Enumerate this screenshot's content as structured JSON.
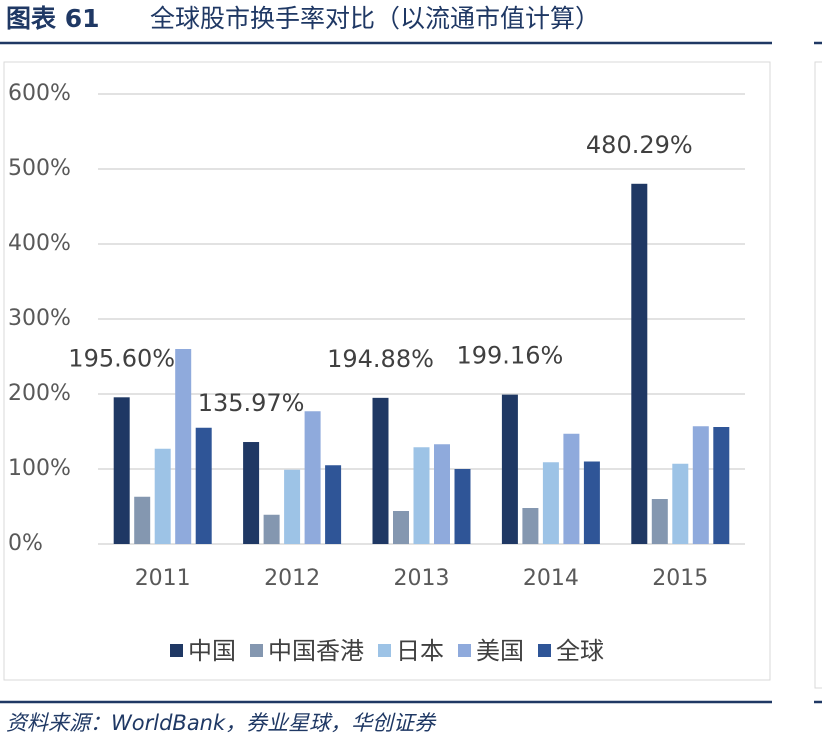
{
  "header": {
    "figure_label": "图表 61",
    "title": "全球股市换手率对比（以流通市值计算）"
  },
  "chart_data": {
    "type": "bar",
    "categories": [
      "2011",
      "2012",
      "2013",
      "2014",
      "2015"
    ],
    "series": [
      {
        "name": "中国",
        "color": "#1f3864",
        "values": [
          195.6,
          135.97,
          194.88,
          199.16,
          480.29
        ],
        "value_labels": [
          "195.60%",
          "135.97%",
          "194.88%",
          "199.16%",
          "480.29%"
        ]
      },
      {
        "name": "中国香港",
        "color": "#8497b0",
        "values": [
          63,
          39,
          44,
          48,
          60
        ]
      },
      {
        "name": "日本",
        "color": "#9dc3e6",
        "values": [
          127,
          99,
          129,
          109,
          107
        ]
      },
      {
        "name": "美国",
        "color": "#8faadc",
        "values": [
          260,
          177,
          133,
          147,
          157
        ]
      },
      {
        "name": "全球",
        "color": "#2f5597",
        "values": [
          155,
          105,
          100,
          110,
          156
        ]
      }
    ],
    "ylim": [
      0,
      600
    ],
    "yticks": [
      {
        "value": 0,
        "label": "0%"
      },
      {
        "value": 100,
        "label": "100%"
      },
      {
        "value": 200,
        "label": "200%"
      },
      {
        "value": 300,
        "label": "300%"
      },
      {
        "value": 400,
        "label": "400%"
      },
      {
        "value": 500,
        "label": "500%"
      },
      {
        "value": 600,
        "label": "600%"
      }
    ],
    "grid": true,
    "legend": "bottom"
  },
  "source": "资料来源：WorldBank，券业星球，华创证券"
}
